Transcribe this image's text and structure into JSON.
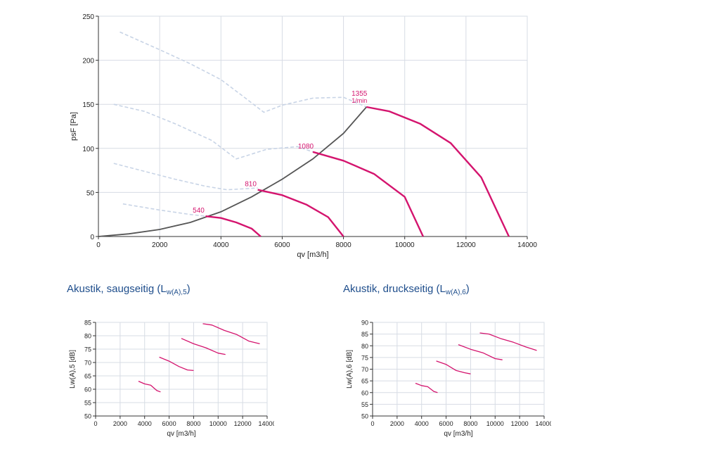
{
  "chart_data": [
    {
      "type": "line",
      "xlabel": "qv [m3/h]",
      "ylabel": "psF [Pa]",
      "xlim": [
        0,
        14000
      ],
      "ylim": [
        0,
        250
      ],
      "xticks": [
        0,
        2000,
        4000,
        6000,
        8000,
        10000,
        12000,
        14000
      ],
      "yticks": [
        0,
        50,
        100,
        150,
        200,
        250
      ],
      "grid": true,
      "fan_curves": [
        {
          "label": "540",
          "points": [
            [
              3500,
              23
            ],
            [
              4000,
              21
            ],
            [
              4500,
              16
            ],
            [
              5000,
              9
            ],
            [
              5300,
              0
            ]
          ]
        },
        {
          "label": "810",
          "points": [
            [
              5200,
              53
            ],
            [
              6000,
              47
            ],
            [
              6800,
              36
            ],
            [
              7500,
              22
            ],
            [
              8000,
              0
            ]
          ]
        },
        {
          "label": "1080",
          "points": [
            [
              7000,
              96
            ],
            [
              8000,
              86
            ],
            [
              9000,
              71
            ],
            [
              10000,
              45
            ],
            [
              10600,
              0
            ]
          ]
        },
        {
          "label": "1355",
          "sublabel": "1/min",
          "points": [
            [
              8750,
              147
            ],
            [
              9500,
              142
            ],
            [
              10500,
              128
            ],
            [
              11500,
              106
            ],
            [
              12500,
              67
            ],
            [
              13400,
              0
            ]
          ]
        }
      ],
      "system_curve": [
        [
          0,
          0
        ],
        [
          1000,
          3
        ],
        [
          2000,
          8
        ],
        [
          3000,
          16
        ],
        [
          4000,
          28
        ],
        [
          5000,
          45
        ],
        [
          6000,
          65
        ],
        [
          7000,
          88
        ],
        [
          8000,
          117
        ],
        [
          8750,
          147
        ]
      ],
      "dashed_curves": [
        [
          [
            800,
            37
          ],
          [
            2000,
            30
          ],
          [
            3000,
            25
          ],
          [
            3500,
            23
          ]
        ],
        [
          [
            500,
            83
          ],
          [
            1500,
            74
          ],
          [
            2500,
            65
          ],
          [
            3500,
            57
          ],
          [
            4200,
            53
          ],
          [
            5200,
            55
          ]
        ],
        [
          [
            500,
            150
          ],
          [
            1500,
            142
          ],
          [
            2500,
            128
          ],
          [
            3700,
            109
          ],
          [
            4500,
            88
          ],
          [
            5500,
            99
          ],
          [
            6500,
            102
          ],
          [
            7000,
            96
          ]
        ],
        [
          [
            700,
            232
          ],
          [
            2000,
            212
          ],
          [
            3000,
            196
          ],
          [
            4000,
            178
          ],
          [
            4800,
            157
          ],
          [
            5400,
            141
          ],
          [
            6000,
            149
          ],
          [
            7000,
            157
          ],
          [
            8000,
            158
          ],
          [
            8750,
            147
          ]
        ]
      ]
    },
    {
      "type": "line",
      "title": "Akustik, saugseitig (L",
      "title_sub": "w(A),5",
      "title_end": ")",
      "xlabel": "qv [m3/h]",
      "ylabel": "Lw(A),5 [dB]",
      "xlim": [
        0,
        14000
      ],
      "ylim": [
        50,
        85
      ],
      "xticks": [
        0,
        2000,
        4000,
        6000,
        8000,
        10000,
        12000,
        14000
      ],
      "yticks": [
        50,
        55,
        60,
        65,
        70,
        75,
        80,
        85
      ],
      "grid": true,
      "series": [
        {
          "values": [
            [
              3500,
              63
            ],
            [
              4000,
              62
            ],
            [
              4500,
              61.5
            ],
            [
              5000,
              59.5
            ],
            [
              5300,
              59
            ]
          ]
        },
        {
          "values": [
            [
              5200,
              72
            ],
            [
              6000,
              70.5
            ],
            [
              6800,
              68.5
            ],
            [
              7500,
              67.2
            ],
            [
              8000,
              67
            ]
          ]
        },
        {
          "values": [
            [
              7000,
              79
            ],
            [
              8000,
              77
            ],
            [
              9000,
              75.5
            ],
            [
              10000,
              73.5
            ],
            [
              10600,
              73
            ]
          ]
        },
        {
          "values": [
            [
              8750,
              84.5
            ],
            [
              9500,
              84
            ],
            [
              10500,
              82
            ],
            [
              11500,
              80.5
            ],
            [
              12500,
              78
            ],
            [
              13400,
              77
            ]
          ]
        }
      ]
    },
    {
      "type": "line",
      "title": "Akustik, druckseitig (L",
      "title_sub": "w(A),6",
      "title_end": ")",
      "xlabel": "qv [m3/h]",
      "ylabel": "Lw(A),6 [dB]",
      "xlim": [
        0,
        14000
      ],
      "ylim": [
        50,
        90
      ],
      "xticks": [
        0,
        2000,
        4000,
        6000,
        8000,
        10000,
        12000,
        14000
      ],
      "yticks": [
        50,
        55,
        60,
        65,
        70,
        75,
        80,
        85,
        90
      ],
      "grid": true,
      "series": [
        {
          "values": [
            [
              3500,
              64
            ],
            [
              4000,
              63
            ],
            [
              4500,
              62.5
            ],
            [
              5000,
              60.5
            ],
            [
              5300,
              60
            ]
          ]
        },
        {
          "values": [
            [
              5200,
              73.5
            ],
            [
              6000,
              72
            ],
            [
              6800,
              69.5
            ],
            [
              7500,
              68.5
            ],
            [
              8000,
              68
            ]
          ]
        },
        {
          "values": [
            [
              7000,
              80.5
            ],
            [
              8000,
              78.5
            ],
            [
              9000,
              77
            ],
            [
              10000,
              74.5
            ],
            [
              10600,
              74
            ]
          ]
        },
        {
          "values": [
            [
              8750,
              85.5
            ],
            [
              9500,
              85
            ],
            [
              10500,
              83
            ],
            [
              11500,
              81.5
            ],
            [
              12500,
              79.5
            ],
            [
              13400,
              78
            ]
          ]
        }
      ]
    }
  ],
  "colors": {
    "fan_curve": "#d4146e",
    "system_curve": "#555555",
    "dashed_curve": "#c8d4e6",
    "grid": "#d7dce4",
    "axis": "#333333",
    "title": "#1f4e8c"
  }
}
